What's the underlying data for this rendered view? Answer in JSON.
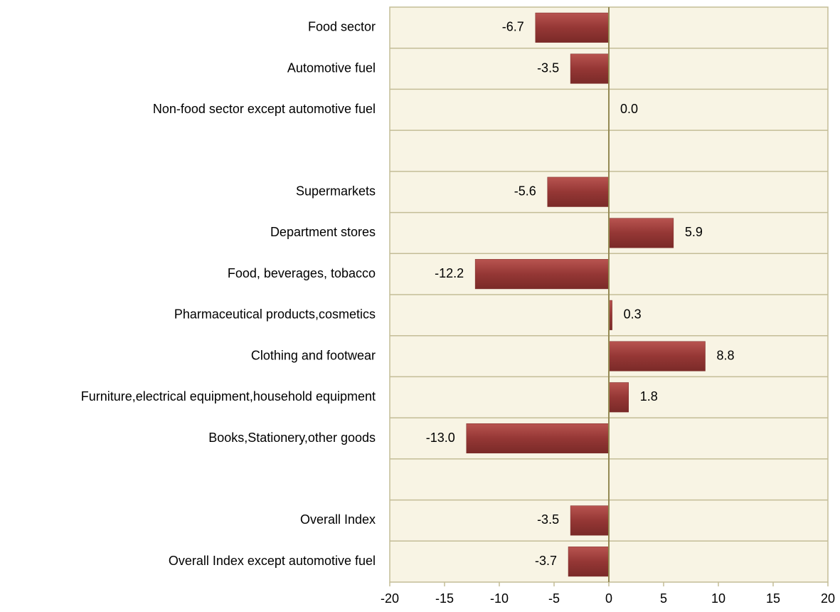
{
  "chart_data": {
    "type": "bar",
    "orientation": "horizontal",
    "categories": [
      "Food sector",
      "Automotive fuel",
      "Non-food sector except automotive fuel",
      null,
      "Supermarkets",
      "Department stores",
      "Food, beverages, tobacco",
      "Pharmaceutical products,cosmetics",
      "Clothing and footwear",
      "Furniture,electrical equipment,household equipment",
      "Books,Stationery,other goods",
      null,
      "Overall Index",
      "Overall Index except automotive fuel"
    ],
    "values": [
      -6.7,
      -3.5,
      0,
      null,
      -5.6,
      5.9,
      -12.2,
      0.3,
      8.8,
      1.8,
      -13,
      null,
      -3.5,
      -3.7
    ],
    "value_labels": [
      "-6.7",
      "-3.5",
      "0.0",
      null,
      "-5.6",
      "5.9",
      "-12.2",
      "0.3",
      "8.8",
      "1.8",
      "-13.0",
      null,
      "-3.5",
      "-3.7"
    ],
    "color": "#953735",
    "xlim": [
      -20,
      20
    ],
    "xticks": [
      -20,
      -15,
      -10,
      -5,
      0,
      5,
      10,
      15,
      20
    ],
    "grid": true
  }
}
